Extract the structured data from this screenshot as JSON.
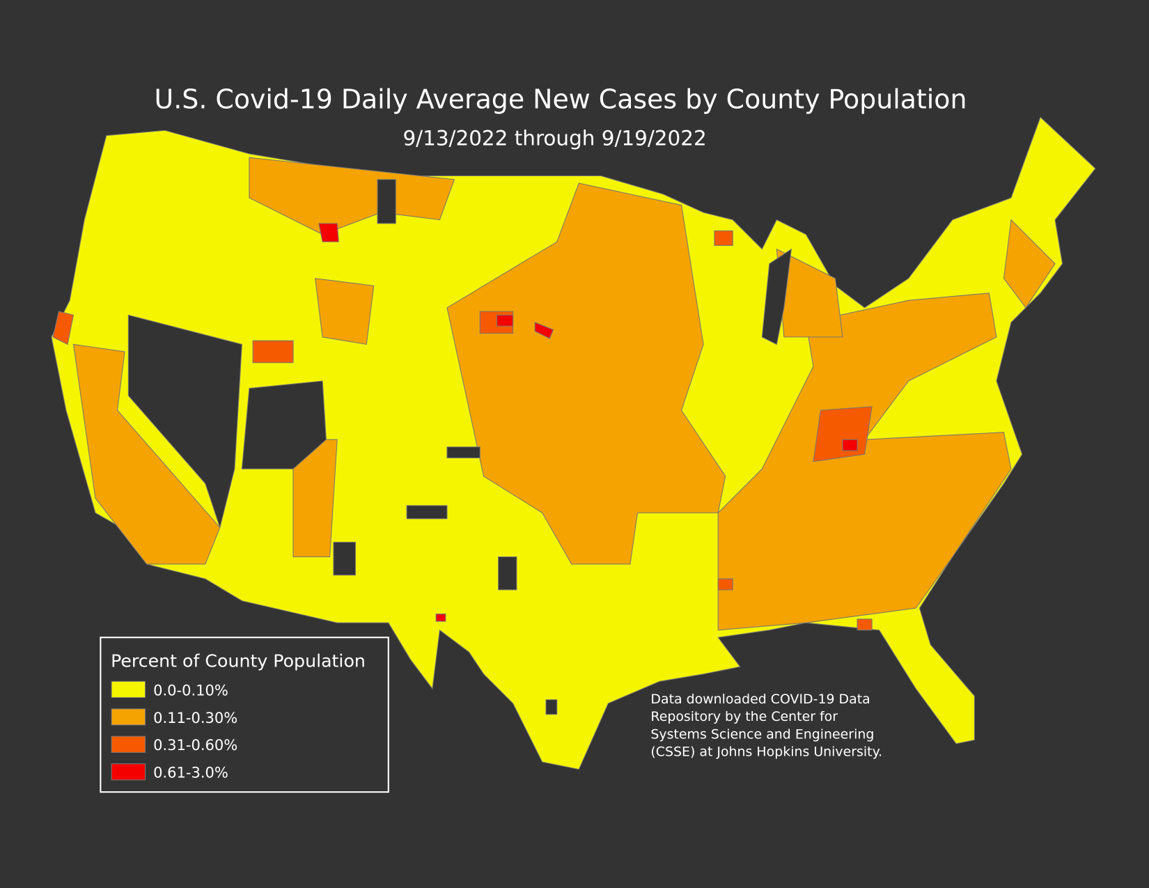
{
  "header": {
    "title": "U.S. Covid-19 Daily Average New Cases by County Population",
    "subtitle": "9/13/2022 through 9/19/2022"
  },
  "legend": {
    "title": "Percent of County Population",
    "items": [
      {
        "label": "0.0-0.10%",
        "color": "#f5f500"
      },
      {
        "label": "0.11-0.30%",
        "color": "#f5a300"
      },
      {
        "label": "0.31-0.60%",
        "color": "#f55a00"
      },
      {
        "label": "0.61-3.0%",
        "color": "#f50000"
      }
    ]
  },
  "source_note": [
    "Data downloaded COVID-19 Data",
    "Repository by the Center for",
    "Systems Science and Engineering",
    "(CSSE) at Johns Hopkins University."
  ]
}
